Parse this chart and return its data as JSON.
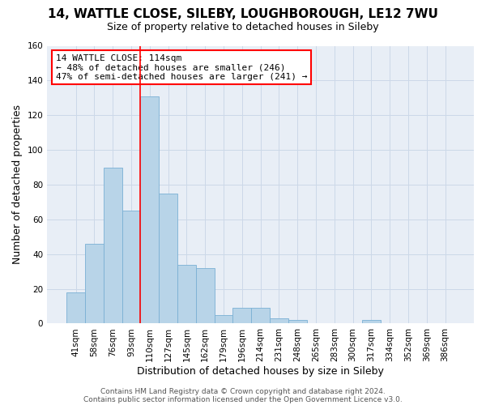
{
  "title": "14, WATTLE CLOSE, SILEBY, LOUGHBOROUGH, LE12 7WU",
  "subtitle": "Size of property relative to detached houses in Sileby",
  "xlabel": "Distribution of detached houses by size in Sileby",
  "ylabel": "Number of detached properties",
  "bar_values": [
    18,
    46,
    90,
    65,
    131,
    75,
    34,
    32,
    5,
    9,
    9,
    3,
    2,
    0,
    0,
    0,
    2,
    0,
    0,
    0,
    0
  ],
  "bar_labels": [
    "41sqm",
    "58sqm",
    "76sqm",
    "93sqm",
    "110sqm",
    "127sqm",
    "145sqm",
    "162sqm",
    "179sqm",
    "196sqm",
    "214sqm",
    "231sqm",
    "248sqm",
    "265sqm",
    "283sqm",
    "300sqm",
    "317sqm",
    "334sqm",
    "352sqm",
    "369sqm",
    "386sqm"
  ],
  "bar_color": "#b8d4e8",
  "bar_edge_color": "#7ab0d4",
  "red_line_index": 4,
  "ylim": [
    0,
    160
  ],
  "yticks": [
    0,
    20,
    40,
    60,
    80,
    100,
    120,
    140,
    160
  ],
  "annotation_title": "14 WATTLE CLOSE: 114sqm",
  "annotation_line1": "← 48% of detached houses are smaller (246)",
  "annotation_line2": "47% of semi-detached houses are larger (241) →",
  "footer_line1": "Contains HM Land Registry data © Crown copyright and database right 2024.",
  "footer_line2": "Contains public sector information licensed under the Open Government Licence v3.0.",
  "background_color": "#ffffff",
  "grid_color": "#ccd8e8",
  "title_fontsize": 11,
  "subtitle_fontsize": 9,
  "axis_label_fontsize": 9,
  "tick_fontsize": 7.5,
  "footer_fontsize": 6.5,
  "annotation_fontsize": 8
}
